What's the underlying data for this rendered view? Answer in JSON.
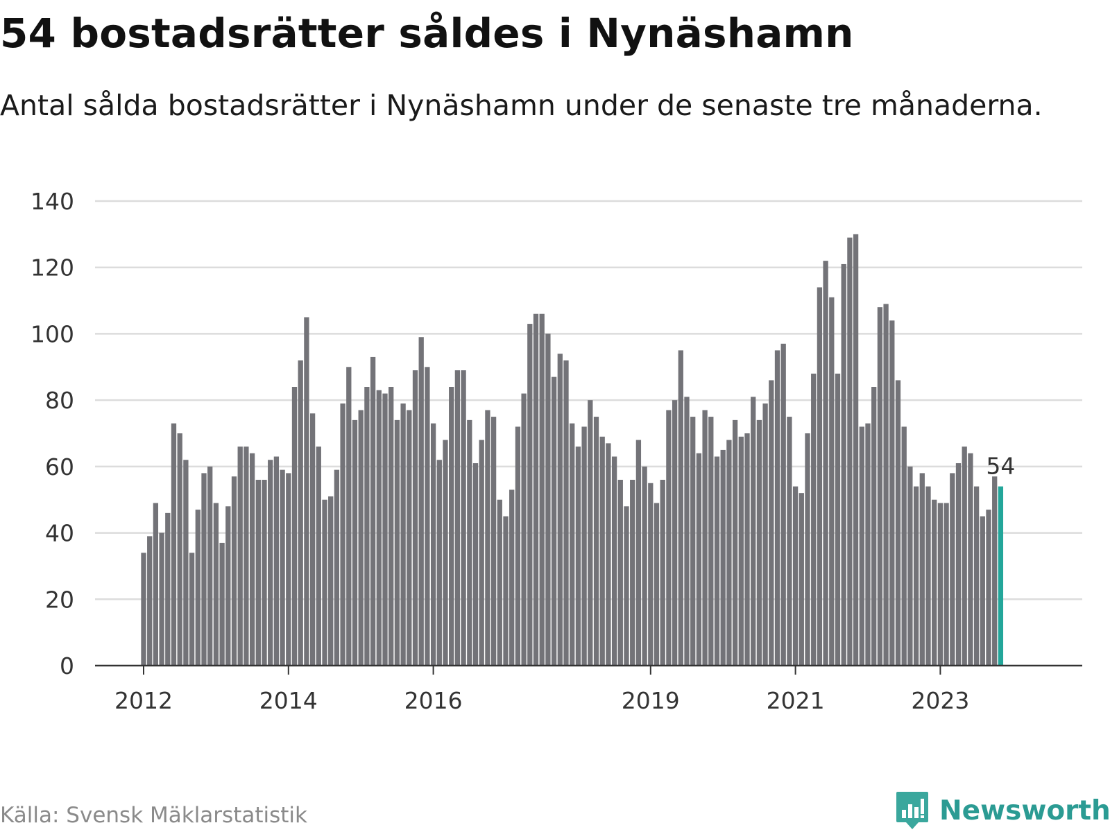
{
  "title": "54 bostadsrätter såldes i Nynäshamn",
  "subtitle": "Antal sålda bostadsrätter i Nynäshamn under de senaste tre månaderna.",
  "source": "Källa: Svensk Mäklarstatistik",
  "brand": {
    "name": "Newsworthy",
    "icon": "newsworthy-logo-icon"
  },
  "colors": {
    "bar": "#737378",
    "highlight": "#23a69a",
    "grid": "#dcdcdc",
    "axis": "#333333"
  },
  "chart_data": {
    "type": "bar",
    "title": "54 bostadsrätter såldes i Nynäshamn",
    "xlabel": "",
    "ylabel": "",
    "ylim": [
      0,
      140
    ],
    "yticks": [
      0,
      20,
      40,
      60,
      80,
      100,
      120,
      140
    ],
    "grid": true,
    "start_year": 2012,
    "xticks": [
      {
        "label": "2012",
        "index": 0
      },
      {
        "label": "2014",
        "index": 24
      },
      {
        "label": "2016",
        "index": 48
      },
      {
        "label": "2019",
        "index": 84
      },
      {
        "label": "2021",
        "index": 108
      },
      {
        "label": "2023",
        "index": 132
      }
    ],
    "values": [
      34,
      39,
      49,
      40,
      46,
      73,
      70,
      62,
      34,
      47,
      58,
      60,
      49,
      37,
      48,
      57,
      66,
      66,
      64,
      56,
      56,
      62,
      63,
      59,
      58,
      84,
      92,
      105,
      76,
      66,
      50,
      51,
      59,
      79,
      90,
      74,
      77,
      84,
      93,
      83,
      82,
      84,
      74,
      79,
      77,
      89,
      99,
      90,
      73,
      62,
      68,
      84,
      89,
      89,
      74,
      61,
      68,
      77,
      75,
      50,
      45,
      53,
      72,
      82,
      103,
      106,
      106,
      100,
      87,
      94,
      92,
      73,
      66,
      72,
      80,
      75,
      69,
      67,
      63,
      56,
      48,
      56,
      68,
      60,
      55,
      49,
      56,
      77,
      80,
      95,
      81,
      75,
      64,
      77,
      75,
      63,
      65,
      68,
      74,
      69,
      70,
      81,
      74,
      79,
      86,
      95,
      97,
      75,
      54,
      52,
      70,
      88,
      114,
      122,
      111,
      88,
      121,
      129,
      130,
      72,
      73,
      84,
      108,
      109,
      104,
      86,
      72,
      60,
      54,
      58,
      54,
      50,
      49,
      49,
      58,
      61,
      66,
      64,
      54,
      45,
      47,
      57,
      54
    ],
    "highlight_index": 142,
    "highlight_label": "54"
  }
}
